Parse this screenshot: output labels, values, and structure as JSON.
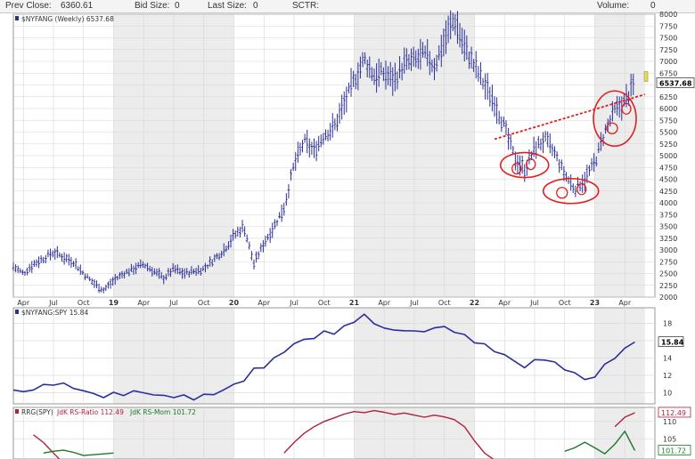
{
  "header": {
    "prev_close": "Prev Close:",
    "prev_close_value": "6360.61",
    "bid_size": "Bid Size:",
    "bid_size_value": "0",
    "last_size": "Last Size:",
    "last_size_value": "0",
    "sctr": "SCTR:",
    "volume": "Volume:",
    "volume_value": "0"
  },
  "colors": {
    "price": "#2b2f9a",
    "ratio_line": "#2b2f9a",
    "rs_ratio": "#b0203a",
    "rs_mom": "#1c7a2a",
    "trendline": "#e02020",
    "circles": "#e02020",
    "grid": "#d6d6d6",
    "band": "#ececec"
  },
  "chart_data": [
    {
      "type": "line",
      "title": "$NYFANG (Weekly) 6537.68",
      "series": [
        {
          "name": "$NYFANG (Weekly)",
          "x": [
            "2018-03",
            "2018-04",
            "2018-05",
            "2018-06",
            "2018-07",
            "2018-08",
            "2018-09",
            "2018-10",
            "2018-11",
            "2018-12",
            "2019-01",
            "2019-02",
            "2019-03",
            "2019-04",
            "2019-05",
            "2019-06",
            "2019-07",
            "2019-08",
            "2019-09",
            "2019-10",
            "2019-11",
            "2019-12",
            "2020-01",
            "2020-02",
            "2020-03",
            "2020-04",
            "2020-05",
            "2020-06",
            "2020-07",
            "2020-08",
            "2020-09",
            "2020-10",
            "2020-11",
            "2020-12",
            "2021-01",
            "2021-02",
            "2021-03",
            "2021-04",
            "2021-05",
            "2021-06",
            "2021-07",
            "2021-08",
            "2021-09",
            "2021-10",
            "2021-11",
            "2021-12",
            "2022-01",
            "2022-02",
            "2022-03",
            "2022-04",
            "2022-05",
            "2022-06",
            "2022-07",
            "2022-08",
            "2022-09",
            "2022-10",
            "2022-11",
            "2022-12",
            "2023-01",
            "2023-02",
            "2023-03",
            "2023-04",
            "2023-05"
          ],
          "values": [
            2650,
            2500,
            2700,
            2820,
            2950,
            2850,
            2750,
            2500,
            2300,
            2150,
            2350,
            2500,
            2600,
            2700,
            2550,
            2400,
            2600,
            2500,
            2550,
            2600,
            2800,
            3000,
            3300,
            3500,
            2700,
            3150,
            3500,
            3900,
            4800,
            5300,
            5100,
            5450,
            5600,
            6100,
            6600,
            7050,
            6700,
            6750,
            6600,
            6950,
            7000,
            7150,
            6900,
            7450,
            7900,
            7300,
            6900,
            6500,
            6150,
            5600,
            4950,
            4700,
            5150,
            5350,
            5050,
            4600,
            4300,
            4500,
            4850,
            5500,
            5950,
            6150,
            6537
          ]
        }
      ],
      "ylim": [
        2000,
        8000
      ],
      "y_ticks": [
        2000,
        2250,
        2500,
        2750,
        3000,
        3250,
        3500,
        3750,
        4000,
        4250,
        4500,
        4750,
        5000,
        5250,
        5500,
        5750,
        6000,
        6250,
        6500,
        6750,
        7000,
        7250,
        7500,
        7750,
        8000
      ],
      "y_tick_labels": [
        "2000",
        "2250",
        "2500",
        "2750",
        "3000",
        "3250",
        "3500",
        "3750",
        "4000",
        "4250",
        "4500",
        "4750",
        "5000",
        "5250",
        "5500",
        "5750",
        "6000",
        "6250",
        "6500",
        "6750",
        "7000",
        "7250",
        "7500",
        "7750",
        "8000"
      ],
      "last_value": 6537.68,
      "last_value_label": "6537.68",
      "trendline": {
        "x": [
          "2022-03",
          "2023-06"
        ],
        "values": [
          5350,
          6300
        ]
      },
      "highlights": [
        {
          "x": "2022-06",
          "y": 4800
        },
        {
          "x": "2022-10",
          "y": 4250
        },
        {
          "x": "2023-03",
          "y": 5750
        }
      ]
    },
    {
      "type": "line",
      "title": "$NYFANG:SPY 15.84",
      "series": [
        {
          "name": "$NYFANG:SPY",
          "x": [
            "2018-03",
            "2018-04",
            "2018-05",
            "2018-06",
            "2018-07",
            "2018-08",
            "2018-09",
            "2018-10",
            "2018-11",
            "2018-12",
            "2019-01",
            "2019-02",
            "2019-03",
            "2019-04",
            "2019-05",
            "2019-06",
            "2019-07",
            "2019-08",
            "2019-09",
            "2019-10",
            "2019-11",
            "2019-12",
            "2020-01",
            "2020-02",
            "2020-03",
            "2020-04",
            "2020-05",
            "2020-06",
            "2020-07",
            "2020-08",
            "2020-09",
            "2020-10",
            "2020-11",
            "2020-12",
            "2021-01",
            "2021-02",
            "2021-03",
            "2021-04",
            "2021-05",
            "2021-06",
            "2021-07",
            "2021-08",
            "2021-09",
            "2021-10",
            "2021-11",
            "2021-12",
            "2022-01",
            "2022-02",
            "2022-03",
            "2022-04",
            "2022-05",
            "2022-06",
            "2022-07",
            "2022-08",
            "2022-09",
            "2022-10",
            "2022-11",
            "2022-12",
            "2023-01",
            "2023-02",
            "2023-03",
            "2023-04",
            "2023-05"
          ],
          "values": [
            10.3,
            10.0,
            10.5,
            10.7,
            11.1,
            10.9,
            10.6,
            10.2,
            9.8,
            9.6,
            9.8,
            9.9,
            10.0,
            10.1,
            9.7,
            9.6,
            9.6,
            9.5,
            9.4,
            9.6,
            9.9,
            10.3,
            10.9,
            11.5,
            12.6,
            13.1,
            13.8,
            14.8,
            15.6,
            16.1,
            16.4,
            16.9,
            17.0,
            17.5,
            18.3,
            19.0,
            17.9,
            17.6,
            17.0,
            17.4,
            16.9,
            17.2,
            17.4,
            17.6,
            17.1,
            16.5,
            16.0,
            15.4,
            14.9,
            14.3,
            13.6,
            13.0,
            13.6,
            14.0,
            13.3,
            12.8,
            12.2,
            11.5,
            11.9,
            13.1,
            14.2,
            14.9,
            15.84
          ]
        }
      ],
      "ylim": [
        8.7,
        19.8
      ],
      "y_ticks": [
        10,
        12,
        14,
        16,
        18
      ],
      "y_tick_labels": [
        "10",
        "12",
        "14",
        "16",
        "18"
      ],
      "last_value": 15.84,
      "last_value_label": "15.84"
    },
    {
      "type": "line",
      "title": "RRG(SPY) JdK RS-Ratio 112.49 JdK RS-Mom 101.72",
      "legend_prefix": "RRG(SPY)",
      "series": [
        {
          "name": "JdK RS-Ratio",
          "label": "JdK RS-Ratio 112.49",
          "x": [
            "2018-05",
            "2018-06",
            "2018-07",
            "2018-08",
            "2019-01",
            "2019-08",
            "2020-06",
            "2020-07",
            "2020-08",
            "2020-09",
            "2020-10",
            "2020-11",
            "2020-12",
            "2021-01",
            "2021-02",
            "2021-03",
            "2021-04",
            "2021-05",
            "2021-06",
            "2021-07",
            "2021-08",
            "2021-09",
            "2021-10",
            "2021-11",
            "2021-12",
            "2022-01",
            "2022-02",
            "2022-03",
            "2023-03",
            "2023-04",
            "2023-05"
          ],
          "values": [
            106.2,
            104.0,
            101.0,
            98.0,
            99.0,
            100.5,
            101.0,
            104.0,
            106.6,
            108.5,
            110.0,
            111.0,
            112.1,
            112.8,
            112.5,
            113.1,
            112.6,
            112.0,
            112.4,
            111.8,
            111.2,
            111.8,
            111.3,
            110.5,
            108.5,
            104.5,
            101.0,
            99.0,
            108.5,
            111.2,
            112.49
          ]
        },
        {
          "name": "JdK RS-Mom",
          "label": "JdK RS-Mom 101.72",
          "x": [
            "2018-06",
            "2018-07",
            "2018-08",
            "2018-09",
            "2018-10",
            "2019-01",
            "2019-06",
            "2021-04",
            "2022-10",
            "2022-11",
            "2022-12",
            "2023-01",
            "2023-02",
            "2023-03",
            "2023-04",
            "2023-05"
          ],
          "values": [
            101.0,
            101.5,
            101.8,
            101.2,
            100.3,
            101.0,
            100.8,
            100.5,
            101.5,
            102.5,
            104.1,
            102.5,
            100.8,
            103.5,
            107.2,
            101.72
          ]
        }
      ],
      "ylim": [
        99.3,
        114.0
      ],
      "y_ticks": [
        105,
        110
      ],
      "y_tick_labels": [
        "105",
        "110"
      ],
      "last_values": [
        112.49,
        101.72
      ],
      "last_value_labels": [
        "112.49",
        "101.72"
      ]
    }
  ],
  "x_axis": {
    "ticks": [
      {
        "label": "Apr",
        "x": "2018-04"
      },
      {
        "label": "Jul",
        "x": "2018-07"
      },
      {
        "label": "Oct",
        "x": "2018-10"
      },
      {
        "label": "19",
        "x": "2019-01",
        "year": true
      },
      {
        "label": "Apr",
        "x": "2019-04"
      },
      {
        "label": "Jul",
        "x": "2019-07"
      },
      {
        "label": "Oct",
        "x": "2019-10"
      },
      {
        "label": "20",
        "x": "2020-01",
        "year": true
      },
      {
        "label": "Apr",
        "x": "2020-04"
      },
      {
        "label": "Jul",
        "x": "2020-07"
      },
      {
        "label": "Oct",
        "x": "2020-10"
      },
      {
        "label": "21",
        "x": "2021-01",
        "year": true
      },
      {
        "label": "Apr",
        "x": "2021-04"
      },
      {
        "label": "Jul",
        "x": "2021-07"
      },
      {
        "label": "Oct",
        "x": "2021-10"
      },
      {
        "label": "22",
        "x": "2022-01",
        "year": true
      },
      {
        "label": "Apr",
        "x": "2022-04"
      },
      {
        "label": "Jul",
        "x": "2022-07"
      },
      {
        "label": "Oct",
        "x": "2022-10"
      },
      {
        "label": "23",
        "x": "2023-01",
        "year": true
      },
      {
        "label": "Apr",
        "x": "2023-04"
      }
    ],
    "bands": [
      [
        "2019-01",
        "2020-01"
      ],
      [
        "2021-01",
        "2022-01"
      ],
      [
        "2023-01",
        "2023-06"
      ]
    ]
  }
}
